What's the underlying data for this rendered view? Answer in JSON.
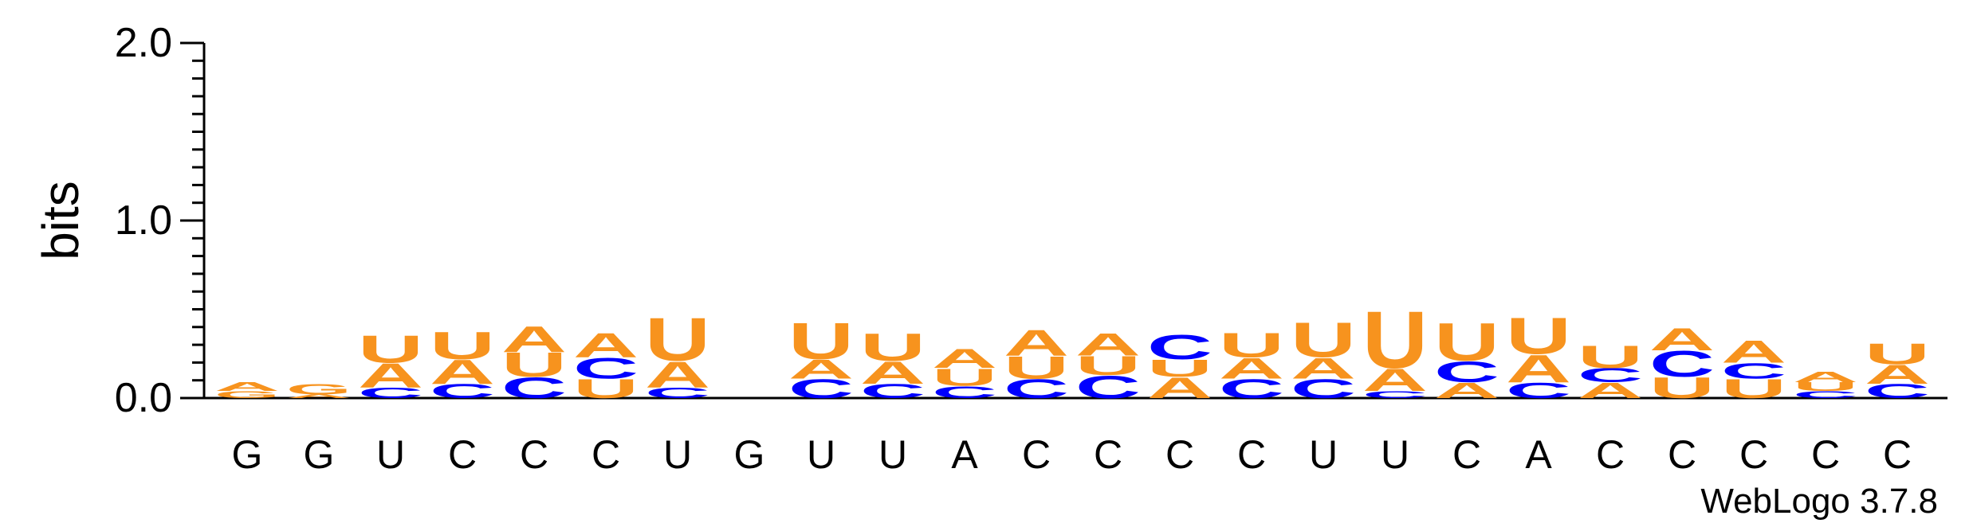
{
  "chart_data": {
    "type": "sequence_logo",
    "ylabel": "bits",
    "ylim": [
      0,
      2.0
    ],
    "y_ticks": [
      "0.0",
      "1.0",
      "2.0"
    ],
    "y_tick_values": [
      0,
      1,
      2
    ],
    "colors": {
      "A": "#f7931e",
      "U": "#f7931e",
      "C": "#0000ff",
      "G": "#f7931e"
    },
    "positions": [
      {
        "label": "G",
        "stack": [
          [
            "G",
            0.04
          ],
          [
            "A",
            0.05
          ]
        ]
      },
      {
        "label": "G",
        "stack": [
          [
            "A",
            0.02
          ],
          [
            "G",
            0.06
          ]
        ]
      },
      {
        "label": "U",
        "stack": [
          [
            "C",
            0.06
          ],
          [
            "A",
            0.14
          ],
          [
            "U",
            0.16
          ]
        ]
      },
      {
        "label": "C",
        "stack": [
          [
            "C",
            0.08
          ],
          [
            "A",
            0.14
          ],
          [
            "U",
            0.16
          ]
        ]
      },
      {
        "label": "C",
        "stack": [
          [
            "C",
            0.12
          ],
          [
            "U",
            0.14
          ],
          [
            "A",
            0.15
          ]
        ]
      },
      {
        "label": "C",
        "stack": [
          [
            "U",
            0.11
          ],
          [
            "C",
            0.12
          ],
          [
            "A",
            0.14
          ]
        ]
      },
      {
        "label": "U",
        "stack": [
          [
            "C",
            0.06
          ],
          [
            "A",
            0.15
          ],
          [
            "U",
            0.25
          ]
        ]
      },
      {
        "label": "G",
        "stack": []
      },
      {
        "label": "U",
        "stack": [
          [
            "C",
            0.11
          ],
          [
            "A",
            0.11
          ],
          [
            "U",
            0.21
          ]
        ]
      },
      {
        "label": "U",
        "stack": [
          [
            "C",
            0.08
          ],
          [
            "A",
            0.13
          ],
          [
            "U",
            0.16
          ]
        ]
      },
      {
        "label": "A",
        "stack": [
          [
            "C",
            0.07
          ],
          [
            "U",
            0.1
          ],
          [
            "A",
            0.11
          ]
        ]
      },
      {
        "label": "C",
        "stack": [
          [
            "C",
            0.11
          ],
          [
            "U",
            0.13
          ],
          [
            "A",
            0.15
          ]
        ]
      },
      {
        "label": "C",
        "stack": [
          [
            "C",
            0.13
          ],
          [
            "U",
            0.11
          ],
          [
            "A",
            0.13
          ]
        ]
      },
      {
        "label": "C",
        "stack": [
          [
            "A",
            0.12
          ],
          [
            "U",
            0.1
          ],
          [
            "C",
            0.14
          ]
        ]
      },
      {
        "label": "C",
        "stack": [
          [
            "C",
            0.11
          ],
          [
            "A",
            0.12
          ],
          [
            "U",
            0.14
          ]
        ]
      },
      {
        "label": "U",
        "stack": [
          [
            "C",
            0.11
          ],
          [
            "A",
            0.12
          ],
          [
            "U",
            0.2
          ]
        ]
      },
      {
        "label": "U",
        "stack": [
          [
            "C",
            0.04
          ],
          [
            "A",
            0.13
          ],
          [
            "U",
            0.33
          ]
        ]
      },
      {
        "label": "C",
        "stack": [
          [
            "A",
            0.09
          ],
          [
            "C",
            0.12
          ],
          [
            "U",
            0.22
          ]
        ]
      },
      {
        "label": "A",
        "stack": [
          [
            "C",
            0.09
          ],
          [
            "A",
            0.16
          ],
          [
            "U",
            0.21
          ]
        ]
      },
      {
        "label": "C",
        "stack": [
          [
            "A",
            0.09
          ],
          [
            "C",
            0.08
          ],
          [
            "U",
            0.13
          ]
        ]
      },
      {
        "label": "C",
        "stack": [
          [
            "U",
            0.12
          ],
          [
            "C",
            0.15
          ],
          [
            "A",
            0.13
          ]
        ]
      },
      {
        "label": "C",
        "stack": [
          [
            "U",
            0.11
          ],
          [
            "C",
            0.09
          ],
          [
            "A",
            0.13
          ]
        ]
      },
      {
        "label": "C",
        "stack": [
          [
            "C",
            0.04
          ],
          [
            "U",
            0.05
          ],
          [
            "A",
            0.06
          ]
        ]
      },
      {
        "label": "C",
        "stack": [
          [
            "C",
            0.08
          ],
          [
            "A",
            0.11
          ],
          [
            "U",
            0.12
          ]
        ]
      }
    ]
  },
  "footer": {
    "text": "WebLogo 3.7.8"
  }
}
